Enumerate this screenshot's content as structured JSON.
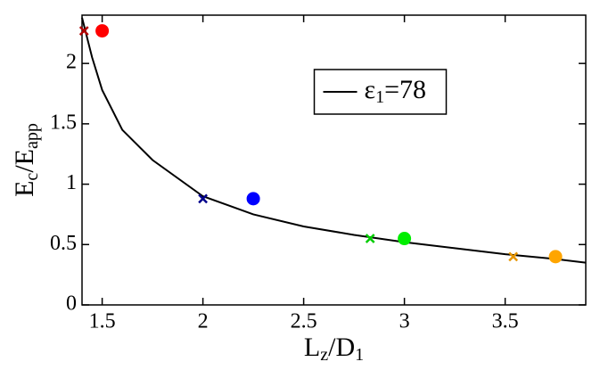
{
  "chart_data": {
    "type": "scatter",
    "xlabel": [
      "L",
      "z",
      "/D",
      "1"
    ],
    "ylabel": [
      "E",
      "c",
      "/E",
      "app"
    ],
    "xlim": [
      1.4,
      3.9
    ],
    "ylim": [
      0,
      2.4
    ],
    "xticks": [
      1.5,
      2,
      2.5,
      3,
      3.5
    ],
    "yticks": [
      0,
      0.5,
      1,
      1.5,
      2
    ],
    "legend": "upper center",
    "series": [
      {
        "type": "line",
        "name": [
          "ε",
          "1",
          "=78"
        ],
        "color": "#000000",
        "x": [
          1.4,
          1.45,
          1.5,
          1.6,
          1.75,
          2,
          2.25,
          2.5,
          2.75,
          3,
          3.25,
          3.5,
          3.75,
          3.9
        ],
        "values": [
          2.38,
          2.05,
          1.78,
          1.45,
          1.2,
          0.9,
          0.75,
          0.65,
          0.58,
          0.52,
          0.47,
          0.42,
          0.38,
          0.35
        ]
      },
      {
        "type": "scatter",
        "marker": "circle",
        "color": "#ff0000",
        "x": [
          1.5
        ],
        "values": [
          2.27
        ]
      },
      {
        "type": "scatter",
        "marker": "circle",
        "color": "#0000ff",
        "x": [
          2.25
        ],
        "values": [
          0.88
        ]
      },
      {
        "type": "scatter",
        "marker": "circle",
        "color": "#00ee00",
        "x": [
          3.0
        ],
        "values": [
          0.55
        ]
      },
      {
        "type": "scatter",
        "marker": "circle",
        "color": "#ffa500",
        "x": [
          3.75
        ],
        "values": [
          0.4
        ]
      },
      {
        "type": "scatter",
        "marker": "cross",
        "color": "#b00000",
        "x": [
          1.41
        ],
        "values": [
          2.27
        ]
      },
      {
        "type": "scatter",
        "marker": "cross",
        "color": "#00008b",
        "x": [
          2.0
        ],
        "values": [
          0.88
        ]
      },
      {
        "type": "scatter",
        "marker": "cross",
        "color": "#00cc00",
        "x": [
          2.83
        ],
        "values": [
          0.55
        ]
      },
      {
        "type": "scatter",
        "marker": "cross",
        "color": "#e69500",
        "x": [
          3.54
        ],
        "values": [
          0.4
        ]
      }
    ]
  }
}
